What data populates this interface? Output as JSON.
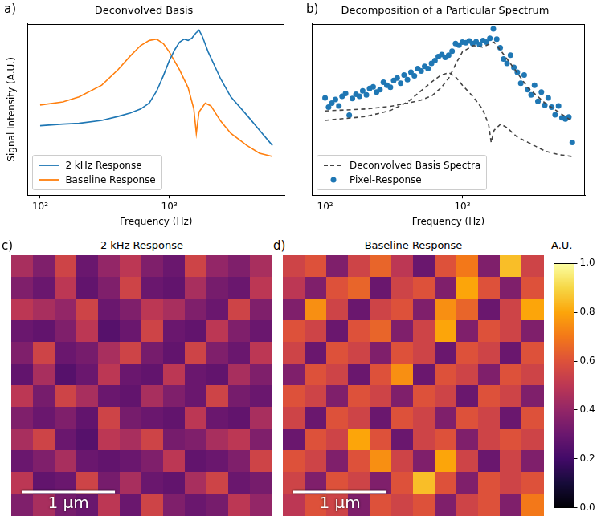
{
  "chart_data": [
    {
      "type": "line",
      "panel_label": "a)",
      "title": "Deconvolved Basis",
      "x_label": "Frequency (Hz)",
      "y_label": "Signal Intensity (A.U.)",
      "log": true,
      "grid": false,
      "legend": "lower left",
      "tick_labels": "x",
      "xlim": [
        80,
        7800
      ],
      "ylim": [
        0.3,
        120
      ],
      "xticks": [
        {
          "value": 100,
          "label": "10²"
        },
        {
          "value": 1000,
          "label": "10³"
        }
      ],
      "series": [
        {
          "name": "2 kHz Response",
          "color": "#1f77b4",
          "type": "line",
          "line_style": "solid",
          "x": [
            100,
            150,
            200,
            300,
            400,
            500,
            600,
            700,
            800,
            900,
            1000,
            1100,
            1200,
            1300,
            1400,
            1500,
            1600,
            1700,
            1800,
            2000,
            2500,
            3000,
            4000,
            5000,
            6300
          ],
          "values": [
            3.4,
            3.6,
            3.7,
            4.1,
            4.7,
            5.3,
            6.1,
            7.5,
            11.5,
            19.5,
            33,
            48,
            63,
            70,
            67,
            73,
            86,
            96,
            78,
            45,
            17.5,
            9.3,
            4.9,
            2.9,
            1.7
          ]
        },
        {
          "name": "Baseline Response",
          "color": "#ff7f0e",
          "type": "line",
          "line_style": "solid",
          "x": [
            100,
            150,
            200,
            300,
            400,
            500,
            600,
            700,
            800,
            900,
            1000,
            1200,
            1400,
            1550,
            1620,
            1700,
            1900,
            2100,
            2500,
            3000,
            4000,
            5000,
            6300
          ],
          "values": [
            7.0,
            7.8,
            9.3,
            14,
            24,
            39,
            56,
            67,
            70,
            60,
            45,
            24,
            12.8,
            6.1,
            2.6,
            5.5,
            7.5,
            6.8,
            4.0,
            2.6,
            1.7,
            1.3,
            1.16
          ]
        }
      ]
    },
    {
      "type": "scatter",
      "panel_label": "b)",
      "title": "Decomposition of a Particular Spectrum",
      "x_label": "Frequency (Hz)",
      "log": true,
      "grid": false,
      "legend": "lower left",
      "tick_labels": "x",
      "xlim": [
        80,
        7800
      ],
      "ylim": [
        0.3,
        120
      ],
      "xticks": [
        {
          "value": 100,
          "label": "10²"
        },
        {
          "value": 1000,
          "label": "10³"
        }
      ],
      "series": [
        {
          "name": "Deconvolved Basis Spectra",
          "color": "#444444",
          "type": "line",
          "line_style": "dashed",
          "x": [
            100,
            200,
            300,
            400,
            500,
            600,
            700,
            800,
            900,
            1000,
            1200,
            1400,
            1700,
            2000,
            2500,
            3000,
            4000,
            5000,
            6300
          ],
          "values": [
            5.7,
            6.1,
            6.7,
            7.5,
            8.3,
            9.7,
            12.8,
            18.3,
            30,
            45,
            56,
            53,
            63,
            41,
            21.7,
            12.8,
            7.5,
            5.5,
            4.0
          ]
        },
        {
          "name": "Deconvolved Basis Spectra",
          "color": "#444444",
          "type": "line",
          "line_style": "dashed",
          "x": [
            100,
            200,
            300,
            400,
            500,
            600,
            700,
            800,
            900,
            1000,
            1200,
            1400,
            1550,
            1620,
            1700,
            1900,
            2100,
            2500,
            3000,
            4000,
            5000,
            6300
          ],
          "values": [
            4.1,
            4.7,
            5.8,
            7.8,
            11.5,
            15.8,
            20,
            21.7,
            18.3,
            14,
            9.3,
            6.1,
            3.6,
            1.9,
            2.9,
            3.6,
            3.2,
            2.3,
            1.9,
            1.4,
            1.24,
            1.16
          ]
        },
        {
          "name": "Pixel-Response",
          "color": "#1f77b4",
          "type": "scatter",
          "marker": "circle",
          "x": [
            100,
            106,
            112,
            119,
            126,
            133,
            141,
            150,
            158,
            168,
            178,
            188,
            200,
            211,
            224,
            237,
            251,
            266,
            282,
            299,
            316,
            335,
            355,
            376,
            398,
            422,
            447,
            473,
            501,
            531,
            562,
            596,
            631,
            668,
            708,
            750,
            794,
            841,
            891,
            944,
            1000,
            1059,
            1122,
            1189,
            1259,
            1334,
            1413,
            1496,
            1585,
            1679,
            1778,
            1884,
            1995,
            2113,
            2239,
            2371,
            2512,
            2661,
            2818,
            2985,
            3162,
            3350,
            3548,
            3758,
            3981,
            4217,
            4467,
            4732,
            5012,
            5309,
            5623,
            5957,
            6310
          ],
          "values": [
            9.0,
            6.5,
            7.5,
            8.5,
            6.8,
            9.5,
            10.5,
            4.9,
            8.8,
            10.2,
            9.5,
            11.5,
            10.0,
            12.5,
            13.2,
            11.0,
            12.0,
            15.5,
            14.0,
            13.0,
            16.5,
            18.0,
            15.0,
            20.0,
            17.0,
            22.0,
            19.5,
            25.0,
            23.0,
            27.0,
            25.0,
            30.0,
            33.0,
            38.0,
            41.0,
            37.0,
            40.0,
            46.0,
            60.0,
            57.0,
            63.0,
            62.0,
            66.0,
            60.0,
            64.0,
            58.0,
            67.0,
            63.0,
            72.0,
            100.0,
            70.0,
            52.0,
            35.0,
            30.0,
            40.0,
            26.0,
            22.0,
            15.0,
            20.0,
            12.0,
            10.0,
            14.0,
            8.0,
            11.0,
            7.0,
            9.0,
            6.5,
            5.0,
            6.8,
            4.5,
            4.3,
            4.6,
            1.9
          ]
        }
      ]
    },
    {
      "type": "heatmap",
      "panel_label": "c)",
      "title": "2 kHz Response",
      "tick_labels": false,
      "xlim": [
        0,
        2.8
      ],
      "ylim": [
        0,
        2.8
      ],
      "scale_bar": {
        "length": 1,
        "label": "1 μm"
      },
      "cells": [
        [
          0.45,
          0.35,
          0.55,
          0.3,
          0.4,
          0.5,
          0.35,
          0.3,
          0.55,
          0.4,
          0.35,
          0.45
        ],
        [
          0.35,
          0.3,
          0.5,
          0.28,
          0.35,
          0.55,
          0.3,
          0.28,
          0.45,
          0.33,
          0.3,
          0.5
        ],
        [
          0.5,
          0.45,
          0.4,
          0.55,
          0.3,
          0.35,
          0.5,
          0.45,
          0.35,
          0.3,
          0.55,
          0.35
        ],
        [
          0.3,
          0.28,
          0.35,
          0.5,
          0.25,
          0.3,
          0.55,
          0.3,
          0.28,
          0.5,
          0.35,
          0.3
        ],
        [
          0.35,
          0.55,
          0.3,
          0.33,
          0.45,
          0.55,
          0.33,
          0.28,
          0.55,
          0.35,
          0.3,
          0.5
        ],
        [
          0.28,
          0.45,
          0.25,
          0.3,
          0.5,
          0.3,
          0.28,
          0.5,
          0.3,
          0.28,
          0.45,
          0.35
        ],
        [
          0.5,
          0.33,
          0.55,
          0.45,
          0.3,
          0.28,
          0.45,
          0.35,
          0.3,
          0.55,
          0.33,
          0.3
        ],
        [
          0.35,
          0.3,
          0.35,
          0.28,
          0.55,
          0.33,
          0.3,
          0.28,
          0.5,
          0.3,
          0.28,
          0.45
        ],
        [
          0.45,
          0.55,
          0.3,
          0.25,
          0.5,
          0.45,
          0.55,
          0.33,
          0.35,
          0.45,
          0.5,
          0.35
        ],
        [
          0.3,
          0.35,
          0.45,
          0.3,
          0.28,
          0.3,
          0.35,
          0.5,
          0.28,
          0.3,
          0.35,
          0.55
        ],
        [
          0.5,
          0.28,
          0.3,
          0.55,
          0.33,
          0.45,
          0.3,
          0.28,
          0.45,
          0.55,
          0.3,
          0.33
        ],
        [
          0.35,
          0.45,
          0.33,
          0.3,
          0.5,
          0.3,
          0.55,
          0.35,
          0.3,
          0.33,
          0.5,
          0.4
        ]
      ]
    },
    {
      "type": "heatmap",
      "panel_label": "d)",
      "title": "Baseline Response",
      "tick_labels": false,
      "xlim": [
        0,
        2.8
      ],
      "ylim": [
        0,
        2.8
      ],
      "scale_bar": {
        "length": 1,
        "label": "1 μm"
      },
      "cells": [
        [
          0.55,
          0.6,
          0.35,
          0.55,
          0.65,
          0.5,
          0.3,
          0.6,
          0.7,
          0.35,
          0.85,
          0.55
        ],
        [
          0.5,
          0.35,
          0.6,
          0.65,
          0.3,
          0.55,
          0.6,
          0.35,
          0.8,
          0.6,
          0.35,
          0.6
        ],
        [
          0.35,
          0.75,
          0.55,
          0.3,
          0.55,
          0.6,
          0.35,
          0.75,
          0.65,
          0.3,
          0.55,
          0.8
        ],
        [
          0.6,
          0.55,
          0.3,
          0.6,
          0.65,
          0.35,
          0.55,
          0.8,
          0.35,
          0.6,
          0.55,
          0.35
        ],
        [
          0.55,
          0.3,
          0.6,
          0.55,
          0.35,
          0.6,
          0.55,
          0.3,
          0.6,
          0.55,
          0.3,
          0.6
        ],
        [
          0.35,
          0.6,
          0.55,
          0.3,
          0.6,
          0.75,
          0.3,
          0.6,
          0.55,
          0.35,
          0.6,
          0.55
        ],
        [
          0.6,
          0.55,
          0.35,
          0.6,
          0.55,
          0.35,
          0.6,
          0.55,
          0.3,
          0.6,
          0.55,
          0.35
        ],
        [
          0.55,
          0.3,
          0.6,
          0.55,
          0.3,
          0.6,
          0.55,
          0.35,
          0.6,
          0.55,
          0.3,
          0.6
        ],
        [
          0.3,
          0.6,
          0.55,
          0.8,
          0.6,
          0.3,
          0.55,
          0.6,
          0.35,
          0.55,
          0.6,
          0.55
        ],
        [
          0.6,
          0.55,
          0.35,
          0.6,
          0.75,
          0.55,
          0.35,
          0.8,
          0.55,
          0.3,
          0.55,
          0.35
        ],
        [
          0.55,
          0.35,
          0.6,
          0.55,
          0.35,
          0.6,
          0.85,
          0.6,
          0.35,
          0.6,
          0.55,
          0.6
        ],
        [
          0.5,
          0.6,
          0.55,
          0.35,
          0.6,
          0.55,
          0.6,
          0.35,
          0.55,
          0.6,
          0.35,
          0.7
        ]
      ]
    },
    {
      "type": "colorbar",
      "title": "A.U.",
      "ylim": [
        0,
        1
      ],
      "yticks": [
        {
          "value": 0,
          "label": "0.0"
        },
        0.2,
        0.4,
        0.6,
        0.8,
        {
          "value": 1,
          "label": "1.0"
        }
      ]
    }
  ]
}
